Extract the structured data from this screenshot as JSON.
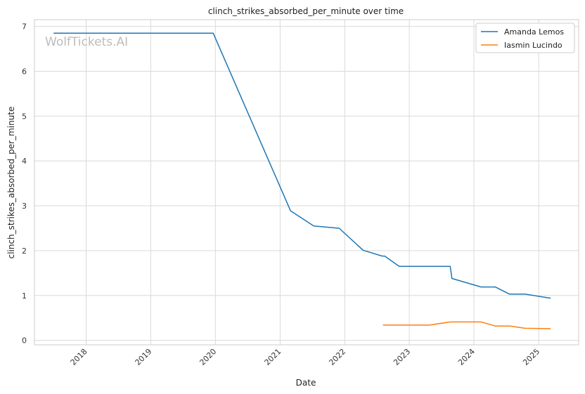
{
  "chart_data": {
    "type": "line",
    "title": "clinch_strikes_absorbed_per_minute over time",
    "xlabel": "Date",
    "ylabel": "clinch_strikes_absorbed_per_minute",
    "watermark": "WolfTickets.AI",
    "x_ticks": [
      "2018",
      "2019",
      "2020",
      "2021",
      "2022",
      "2023",
      "2024",
      "2025"
    ],
    "y_ticks": [
      "0",
      "1",
      "2",
      "3",
      "4",
      "5",
      "6",
      "7"
    ],
    "xlim": [
      "2017-03-15",
      "2025-08-15"
    ],
    "ylim": [
      -0.1,
      7.15
    ],
    "grid": true,
    "legend_position": "top-right",
    "series": [
      {
        "name": "Amanda Lemos",
        "color": "#1f77b4",
        "points": [
          [
            "2017-07-01",
            6.85
          ],
          [
            "2019-12-20",
            6.85
          ],
          [
            "2021-03-01",
            2.89
          ],
          [
            "2021-07-10",
            2.55
          ],
          [
            "2021-12-01",
            2.5
          ],
          [
            "2022-04-15",
            2.01
          ],
          [
            "2022-08-01",
            1.88
          ],
          [
            "2022-08-15",
            1.88
          ],
          [
            "2022-11-05",
            1.65
          ],
          [
            "2023-08-20",
            1.65
          ],
          [
            "2023-08-30",
            1.38
          ],
          [
            "2024-02-10",
            1.19
          ],
          [
            "2024-05-01",
            1.19
          ],
          [
            "2024-07-20",
            1.03
          ],
          [
            "2024-10-15",
            1.03
          ],
          [
            "2025-03-10",
            0.94
          ]
        ]
      },
      {
        "name": "Iasmin Lucindo",
        "color": "#ff7f0e",
        "points": [
          [
            "2022-08-05",
            0.34
          ],
          [
            "2023-04-25",
            0.34
          ],
          [
            "2023-08-20",
            0.41
          ],
          [
            "2024-02-10",
            0.41
          ],
          [
            "2024-05-01",
            0.32
          ],
          [
            "2024-07-25",
            0.32
          ],
          [
            "2024-10-15",
            0.27
          ],
          [
            "2025-03-10",
            0.26
          ]
        ]
      }
    ]
  }
}
